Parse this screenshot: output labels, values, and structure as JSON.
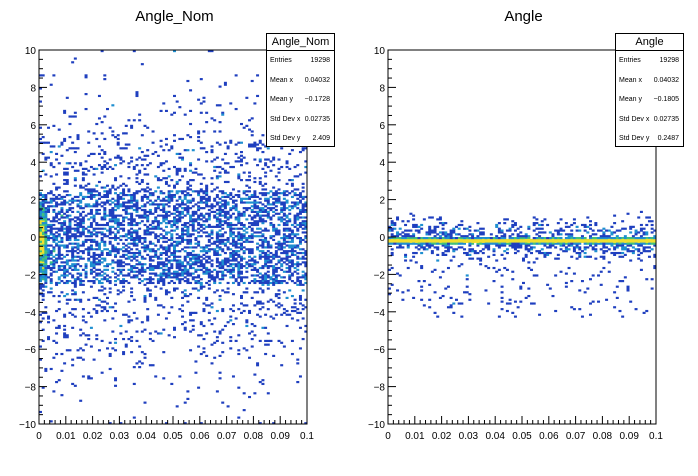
{
  "chart_data": [
    {
      "type": "heatmap",
      "title": "Angle_Nom",
      "xlabel": "",
      "ylabel": "",
      "xlim": [
        0,
        0.1
      ],
      "ylim": [
        -10,
        10
      ],
      "x_ticks": [
        "0",
        "0.01",
        "0.02",
        "0.03",
        "0.04",
        "0.05",
        "0.06",
        "0.07",
        "0.08",
        "0.09",
        "0.1"
      ],
      "y_ticks": [
        "−10",
        "−8",
        "−6",
        "−4",
        "−2",
        "0",
        "2",
        "4",
        "6",
        "8",
        "10"
      ],
      "stats": {
        "title": "Angle_Nom",
        "rows": [
          {
            "label": "Entries",
            "value": "19298"
          },
          {
            "label": "Mean x",
            "value": "0.04032"
          },
          {
            "label": "Mean y",
            "value": "−0.1728"
          },
          {
            "label": "Std Dev x",
            "value": "0.02735"
          },
          {
            "label": "Std Dev y",
            "value": "2.409"
          }
        ]
      },
      "distribution": {
        "mean_x": 0.04032,
        "std_x": 0.02735,
        "mean_y": -0.1728,
        "std_y": 2.409,
        "core_y_halfwidth": 2.5,
        "spike_x": 0.002
      },
      "colors": {
        "low": "#1f3fbf",
        "mid": "#1e8fd0",
        "high": "#3fbf80",
        "peak": "#f0e030"
      }
    },
    {
      "type": "heatmap",
      "title": "Angle",
      "xlabel": "",
      "ylabel": "",
      "xlim": [
        0,
        0.1
      ],
      "ylim": [
        -10,
        10
      ],
      "x_ticks": [
        "0",
        "0.01",
        "0.02",
        "0.03",
        "0.04",
        "0.05",
        "0.06",
        "0.07",
        "0.08",
        "0.09",
        "0.1"
      ],
      "y_ticks": [
        "−10",
        "−8",
        "−6",
        "−4",
        "−2",
        "0",
        "2",
        "4",
        "6",
        "8",
        "10"
      ],
      "stats": {
        "title": "Angle",
        "rows": [
          {
            "label": "Entries",
            "value": "19298"
          },
          {
            "label": "Mean x",
            "value": "0.04032"
          },
          {
            "label": "Mean y",
            "value": "−0.1805"
          },
          {
            "label": "Std Dev x",
            "value": "0.02735"
          },
          {
            "label": "Std Dev y",
            "value": "0.2487"
          }
        ]
      },
      "distribution": {
        "mean_x": 0.04032,
        "std_x": 0.02735,
        "mean_y": -0.1805,
        "std_y": 0.2487,
        "band_center": -0.2
      },
      "colors": {
        "low": "#1f3fbf",
        "mid": "#1e8fd0",
        "high": "#3fbf80",
        "peak": "#f0e030"
      }
    }
  ]
}
